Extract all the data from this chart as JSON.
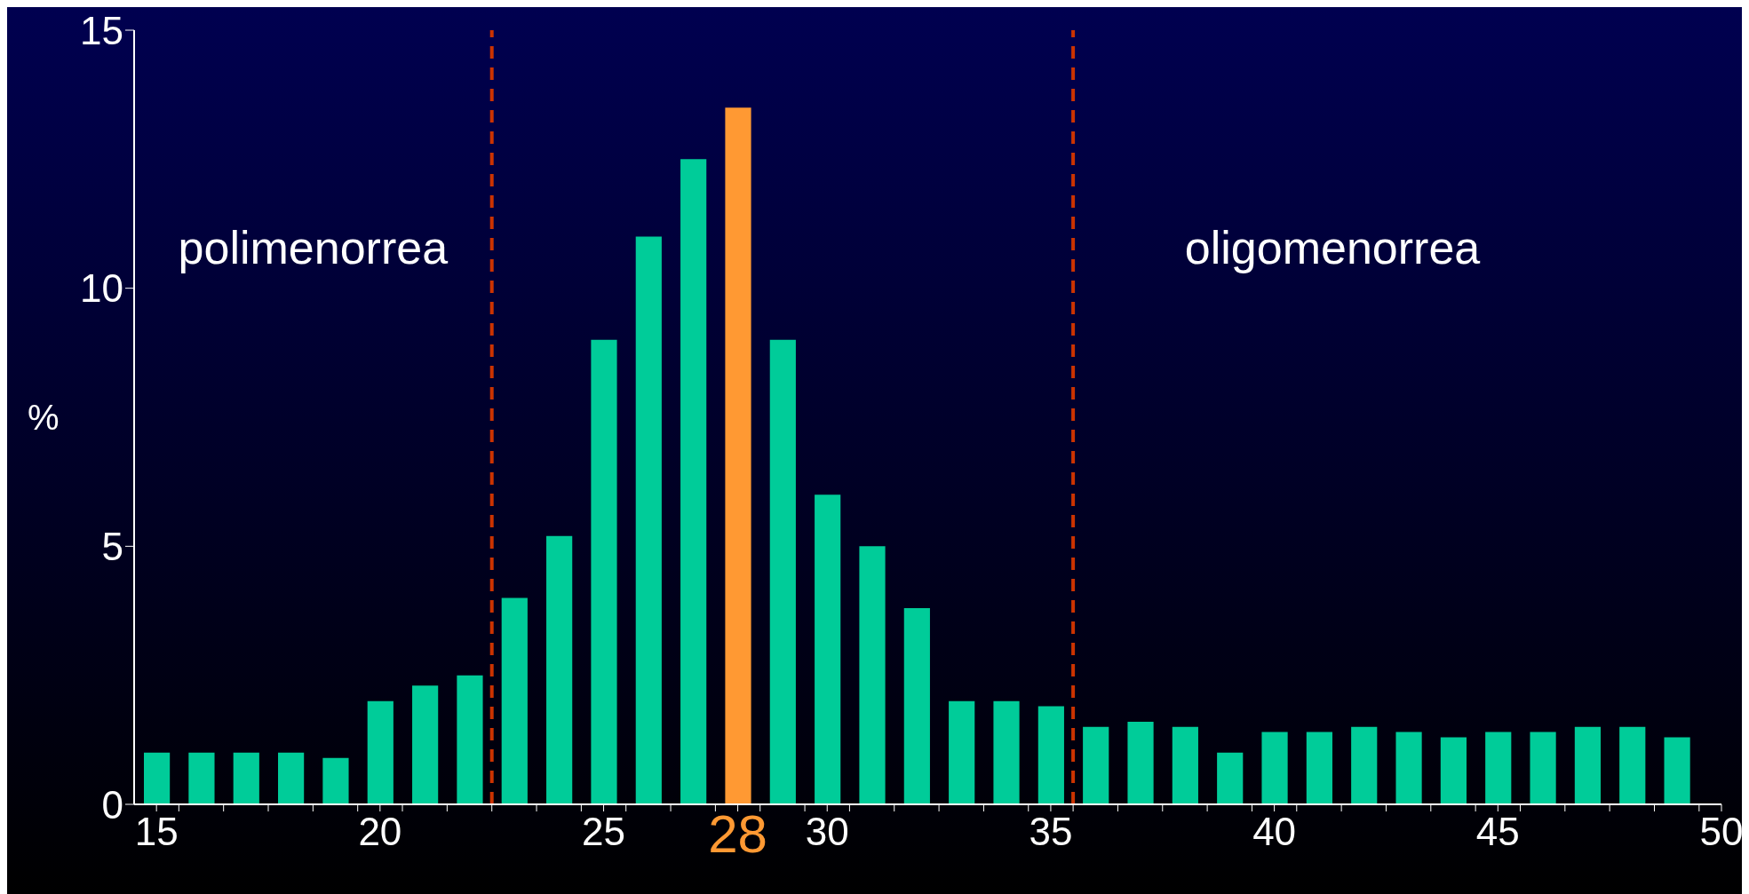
{
  "chart_data": {
    "type": "bar",
    "ylabel": "%",
    "x": [
      15,
      16,
      17,
      18,
      19,
      20,
      21,
      22,
      23,
      24,
      25,
      26,
      27,
      28,
      29,
      30,
      31,
      32,
      33,
      34,
      35,
      36,
      37,
      38,
      39,
      40,
      41,
      42,
      43,
      44,
      45,
      46,
      47,
      48,
      49
    ],
    "values": [
      1,
      1,
      1,
      1,
      0.9,
      2,
      2.3,
      2.5,
      4,
      5.2,
      9,
      11,
      12.5,
      13.5,
      9,
      6,
      5,
      3.8,
      2,
      2,
      1.9,
      1.5,
      1.6,
      1.5,
      1,
      1.4,
      1.4,
      1.5,
      1.4,
      1.3,
      1.4,
      1.4,
      1.5,
      1.5,
      1.3
    ],
    "colors": [
      "#00cc99",
      "#00cc99",
      "#00cc99",
      "#00cc99",
      "#00cc99",
      "#00cc99",
      "#00cc99",
      "#00cc99",
      "#00cc99",
      "#00cc99",
      "#00cc99",
      "#00cc99",
      "#00cc99",
      "#ff9933",
      "#00cc99",
      "#00cc99",
      "#00cc99",
      "#00cc99",
      "#00cc99",
      "#00cc99",
      "#00cc99",
      "#00cc99",
      "#00cc99",
      "#00cc99",
      "#00cc99",
      "#00cc99",
      "#00cc99",
      "#00cc99",
      "#00cc99",
      "#00cc99",
      "#00cc99",
      "#00cc99",
      "#00cc99",
      "#00cc99",
      "#00cc99"
    ],
    "xlim": [
      14.5,
      50
    ],
    "xticks": [
      15,
      20,
      25,
      28,
      30,
      35,
      40,
      45,
      50,
      {
        "value": 15.5,
        "label": null
      },
      {
        "value": 16.5,
        "label": null
      },
      {
        "value": 17.5,
        "label": null
      },
      {
        "value": 18.5,
        "label": null
      },
      {
        "value": 19.5,
        "label": null
      },
      {
        "value": 20.5,
        "label": null
      },
      {
        "value": 21.5,
        "label": null
      },
      {
        "value": 22.5,
        "label": null
      },
      {
        "value": 23.5,
        "label": null
      },
      {
        "value": 24.5,
        "label": null
      },
      {
        "value": 25.5,
        "label": null
      },
      {
        "value": 26.5,
        "label": null
      },
      {
        "value": 27.5,
        "label": null
      },
      {
        "value": 28.5,
        "label": null
      },
      {
        "value": 29.5,
        "label": null
      },
      {
        "value": 30.5,
        "label": null
      },
      {
        "value": 31.5,
        "label": null
      },
      {
        "value": 32.5,
        "label": null
      },
      {
        "value": 33.5,
        "label": null
      },
      {
        "value": 34.5,
        "label": null
      },
      {
        "value": 35.5,
        "label": null
      },
      {
        "value": 36.5,
        "label": null
      },
      {
        "value": 37.5,
        "label": null
      },
      {
        "value": 38.5,
        "label": null
      },
      {
        "value": 39.5,
        "label": null
      },
      {
        "value": 40.5,
        "label": null
      },
      {
        "value": 41.5,
        "label": null
      },
      {
        "value": 42.5,
        "label": null
      },
      {
        "value": 43.5,
        "label": null
      },
      {
        "value": 44.5,
        "label": null
      },
      {
        "value": 45.5,
        "label": null
      },
      {
        "value": 46.5,
        "label": null
      },
      {
        "value": 47.5,
        "label": null
      },
      {
        "value": 48.5,
        "label": null
      },
      {
        "value": 49.5,
        "label": null
      }
    ],
    "ylim": [
      0,
      15
    ],
    "yticks": [
      0,
      5,
      10,
      15
    ],
    "ref_lines": [
      {
        "axis": "x",
        "value": 22.5,
        "color": "#cc3300",
        "line_style": "dashed"
      },
      {
        "axis": "x",
        "value": 35.5,
        "color": "#cc3300",
        "line_style": "dashed"
      }
    ],
    "annotations": [
      "polimenorrea",
      "oligomenorrea"
    ]
  }
}
